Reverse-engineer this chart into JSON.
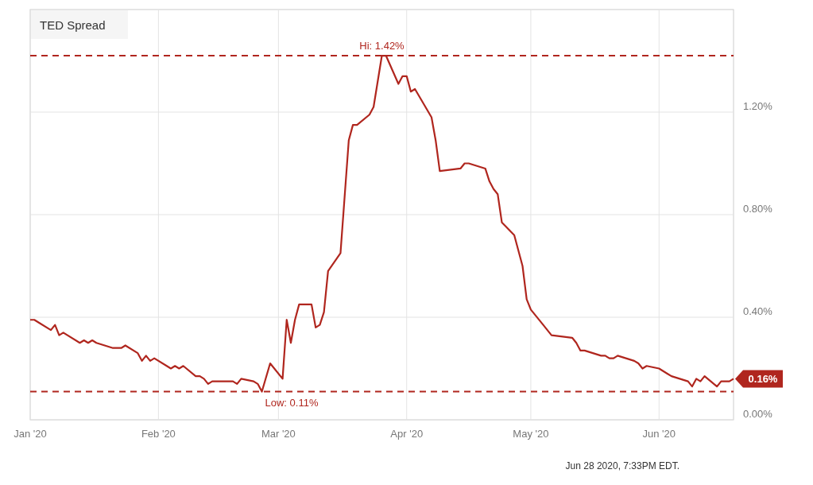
{
  "chart_data": {
    "type": "line",
    "title": "TED Spread",
    "x": [
      "2020-01-01",
      "2020-01-02",
      "2020-01-03",
      "2020-01-06",
      "2020-01-07",
      "2020-01-08",
      "2020-01-09",
      "2020-01-13",
      "2020-01-14",
      "2020-01-15",
      "2020-01-16",
      "2020-01-17",
      "2020-01-21",
      "2020-01-22",
      "2020-01-23",
      "2020-01-24",
      "2020-01-27",
      "2020-01-28",
      "2020-01-29",
      "2020-01-30",
      "2020-01-31",
      "2020-02-03",
      "2020-02-04",
      "2020-02-05",
      "2020-02-06",
      "2020-02-07",
      "2020-02-10",
      "2020-02-11",
      "2020-02-12",
      "2020-02-13",
      "2020-02-14",
      "2020-02-19",
      "2020-02-20",
      "2020-02-21",
      "2020-02-24",
      "2020-02-25",
      "2020-02-26",
      "2020-02-28",
      "2020-03-02",
      "2020-03-03",
      "2020-03-04",
      "2020-03-05",
      "2020-03-06",
      "2020-03-09",
      "2020-03-10",
      "2020-03-11",
      "2020-03-12",
      "2020-03-13",
      "2020-03-16",
      "2020-03-18",
      "2020-03-19",
      "2020-03-20",
      "2020-03-23",
      "2020-03-24",
      "2020-03-26",
      "2020-03-27",
      "2020-03-30",
      "2020-03-31",
      "2020-04-01",
      "2020-04-02",
      "2020-04-03",
      "2020-04-07",
      "2020-04-08",
      "2020-04-09",
      "2020-04-14",
      "2020-04-15",
      "2020-04-16",
      "2020-04-20",
      "2020-04-21",
      "2020-04-22",
      "2020-04-23",
      "2020-04-24",
      "2020-04-27",
      "2020-04-29",
      "2020-04-30",
      "2020-05-01",
      "2020-05-04",
      "2020-05-05",
      "2020-05-06",
      "2020-05-11",
      "2020-05-12",
      "2020-05-13",
      "2020-05-14",
      "2020-05-18",
      "2020-05-19",
      "2020-05-20",
      "2020-05-21",
      "2020-05-22",
      "2020-05-26",
      "2020-05-27",
      "2020-05-28",
      "2020-05-29",
      "2020-06-01",
      "2020-06-03",
      "2020-06-04",
      "2020-06-08",
      "2020-06-09",
      "2020-06-10",
      "2020-06-11",
      "2020-06-12",
      "2020-06-15",
      "2020-06-16",
      "2020-06-17",
      "2020-06-18",
      "2020-06-19"
    ],
    "series": [
      {
        "color": "#b0261e",
        "values": [
          0.39,
          0.39,
          0.38,
          0.35,
          0.37,
          0.33,
          0.34,
          0.3,
          0.31,
          0.3,
          0.31,
          0.3,
          0.28,
          0.28,
          0.28,
          0.29,
          0.26,
          0.23,
          0.25,
          0.23,
          0.24,
          0.21,
          0.2,
          0.21,
          0.2,
          0.21,
          0.17,
          0.17,
          0.16,
          0.14,
          0.15,
          0.15,
          0.14,
          0.16,
          0.15,
          0.14,
          0.11,
          0.22,
          0.16,
          0.39,
          0.3,
          0.39,
          0.45,
          0.45,
          0.36,
          0.37,
          0.42,
          0.58,
          0.65,
          1.09,
          1.15,
          1.15,
          1.19,
          1.22,
          1.42,
          1.42,
          1.31,
          1.34,
          1.34,
          1.28,
          1.29,
          1.18,
          1.09,
          0.97,
          0.98,
          1.0,
          1.0,
          0.98,
          0.93,
          0.9,
          0.88,
          0.77,
          0.72,
          0.6,
          0.47,
          0.43,
          0.37,
          0.35,
          0.33,
          0.32,
          0.3,
          0.27,
          0.27,
          0.25,
          0.25,
          0.24,
          0.24,
          0.25,
          0.23,
          0.22,
          0.2,
          0.21,
          0.2,
          0.18,
          0.17,
          0.15,
          0.13,
          0.16,
          0.15,
          0.17,
          0.13,
          0.15,
          0.15,
          0.15,
          0.16
        ],
        "value_labels": [
          null,
          null,
          null,
          null,
          null,
          null,
          null,
          null,
          null,
          null,
          null,
          null,
          null,
          null,
          null,
          null,
          null,
          null,
          null,
          null,
          null,
          null,
          null,
          null,
          null,
          null,
          null,
          null,
          null,
          null,
          null,
          null,
          null,
          null,
          null,
          null,
          null,
          null,
          null,
          null,
          null,
          null,
          null,
          null,
          null,
          null,
          null,
          null,
          null,
          null,
          null,
          null,
          null,
          null,
          null,
          null,
          null,
          null,
          null,
          null,
          null,
          null,
          null,
          null,
          null,
          null,
          null,
          null,
          null,
          null,
          null,
          null,
          null,
          null,
          null,
          null,
          null,
          null,
          null,
          null,
          null,
          null,
          null,
          null,
          null,
          null,
          null,
          null,
          null,
          null,
          null,
          null,
          null,
          null,
          null,
          null,
          null,
          null,
          null,
          null,
          null,
          null,
          null,
          null,
          "0.16%"
        ]
      }
    ],
    "xlim": [
      "2020-01-01",
      "2020-06-19"
    ],
    "xticks": [
      {
        "value": "2020-01-01",
        "label": "Jan '20"
      },
      {
        "value": "2020-02-01",
        "label": "Feb '20"
      },
      {
        "value": "2020-03-01",
        "label": "Mar '20"
      },
      {
        "value": "2020-04-01",
        "label": "Apr '20"
      },
      {
        "value": "2020-05-01",
        "label": "May '20"
      },
      {
        "value": "2020-06-01",
        "label": "Jun '20"
      }
    ],
    "ylim": [
      0,
      1.6
    ],
    "yticks": [
      {
        "value": 0,
        "label": "0.00%"
      },
      {
        "value": 0.4,
        "label": "0.40%"
      },
      {
        "value": 0.8,
        "label": "0.80%"
      },
      {
        "value": 1.2,
        "label": "1.20%"
      }
    ],
    "grid": true,
    "ref_lines": [
      {
        "axis": "y",
        "value": 1.42,
        "label": "Hi: 1.42%",
        "color": "#b0261e",
        "line_style": "dashed"
      },
      {
        "axis": "y",
        "value": 0.11,
        "label": "Low: 0.11%",
        "color": "#b0261e",
        "line_style": "dashed"
      }
    ],
    "annotations": [
      "Jun 28 2020, 7:33PM EDT."
    ]
  }
}
